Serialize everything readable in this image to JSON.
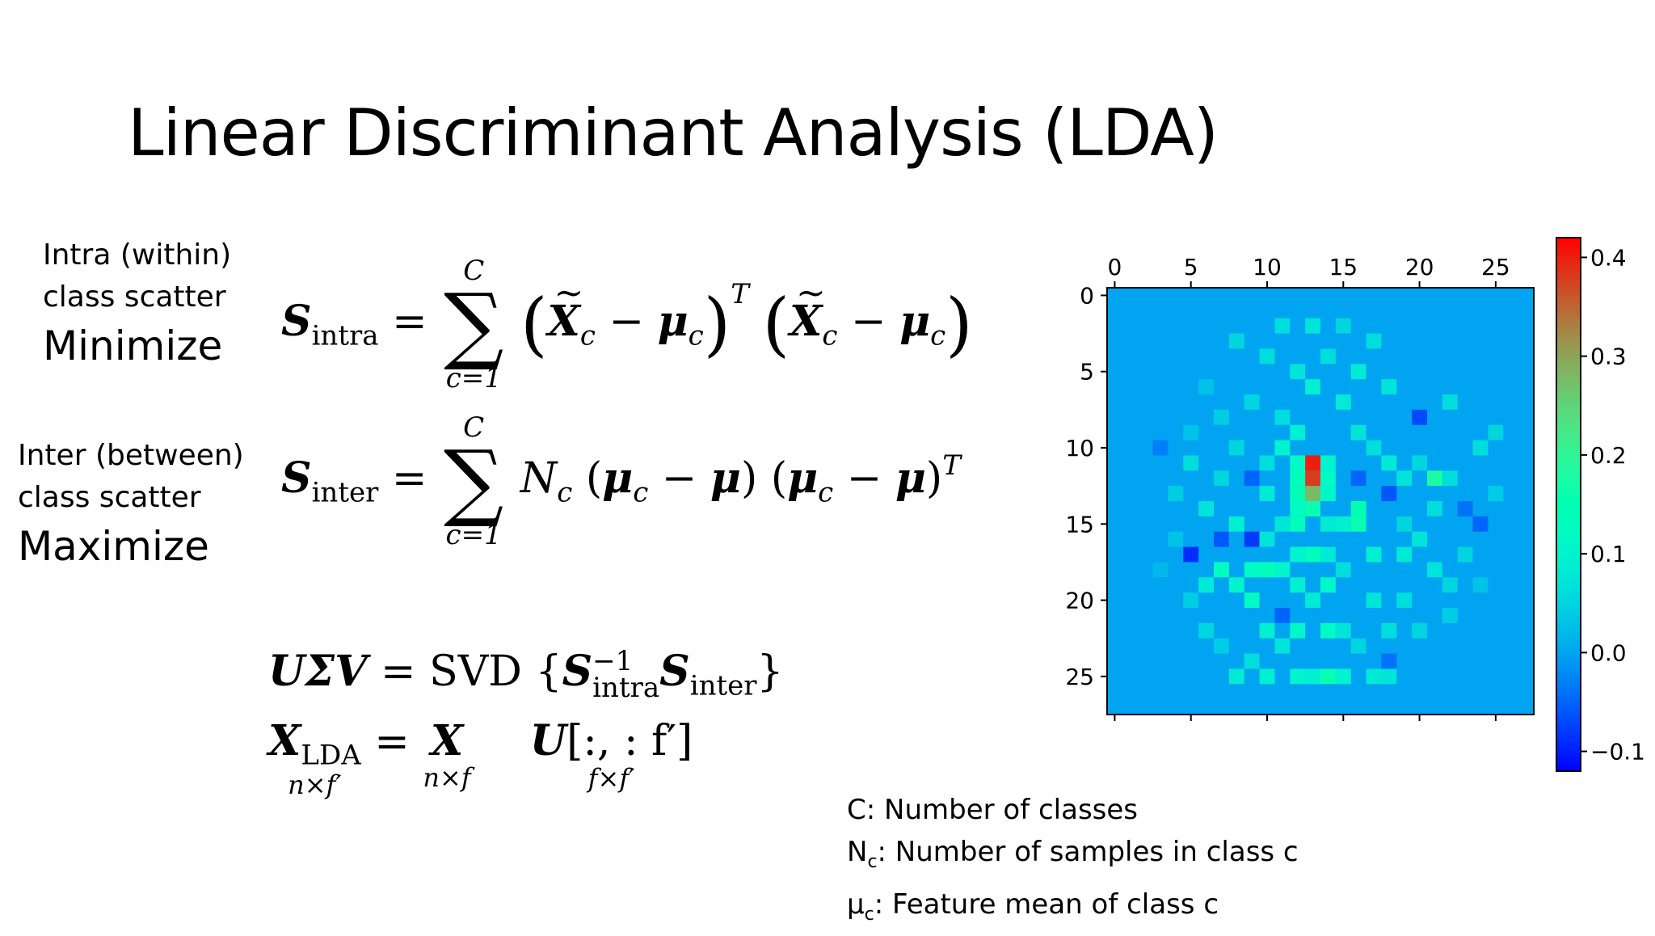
{
  "title": "Linear Discriminant Analysis (LDA)",
  "intra": {
    "line1": "Intra (within)",
    "line2": "class scatter",
    "action": "Minimize"
  },
  "inter": {
    "line1": "Inter (between)",
    "line2": "class scatter",
    "action": "Maximize"
  },
  "equations": {
    "S": "S",
    "intra_sub": "intra",
    "inter_sub": "inter",
    "sum_top": "C",
    "sum_bottom": "c=1",
    "X": "X",
    "mu": "μ",
    "c": "c",
    "T": "T",
    "N": "N",
    "svd_lhs": "UΣV",
    "svd_fn": "SVD",
    "inv": "−1",
    "lda_sub": "LDA",
    "dim_lda": "n×f′",
    "dim_x": "n×f",
    "U_slice": "[:, : f′]",
    "dim_u": "f×f′"
  },
  "notes": [
    {
      "sym": "C",
      "sub": "",
      "text": ": Number of classes"
    },
    {
      "sym": "N",
      "sub": "c",
      "text": ": Number of samples in class c"
    },
    {
      "sym": "μ",
      "sub": "c",
      "text": ": Feature mean of class c"
    }
  ],
  "chart_data": {
    "type": "heatmap",
    "x_ticks": [
      0,
      5,
      10,
      15,
      20,
      25
    ],
    "y_ticks": [
      0,
      5,
      10,
      15,
      20,
      25
    ],
    "xlim": [
      -0.5,
      27.5
    ],
    "ylim": [
      27.5,
      -0.5
    ],
    "x_axis_position": "top",
    "grid": false,
    "colormap": "rainbow",
    "colorbar": {
      "ticks": [
        0.4,
        0.3,
        0.2,
        0.1,
        0.0,
        -0.1
      ],
      "tick_labels": [
        "0.4",
        "0.3",
        "0.2",
        "0.1",
        "0.0",
        "−0.1"
      ],
      "range": [
        -0.12,
        0.42
      ],
      "position": "right"
    },
    "background_value": 0.0,
    "grid_size": [
      28,
      28
    ],
    "cells": [
      [
        13,
        11,
        0.4
      ],
      [
        13,
        12,
        0.38
      ],
      [
        13,
        13,
        0.28
      ],
      [
        12,
        11,
        0.12
      ],
      [
        14,
        11,
        0.1
      ],
      [
        12,
        12,
        0.14
      ],
      [
        14,
        12,
        0.12
      ],
      [
        12,
        13,
        0.15
      ],
      [
        14,
        13,
        0.11
      ],
      [
        12,
        14,
        0.12
      ],
      [
        13,
        14,
        0.16
      ],
      [
        12,
        15,
        0.14
      ],
      [
        16,
        14,
        0.15
      ],
      [
        16,
        15,
        0.16
      ],
      [
        14,
        15,
        0.08
      ],
      [
        15,
        15,
        0.09
      ],
      [
        5,
        17,
        -0.09
      ],
      [
        9,
        16,
        -0.08
      ],
      [
        12,
        9,
        0.09
      ],
      [
        11,
        10,
        0.1
      ],
      [
        9,
        12,
        -0.05
      ],
      [
        20,
        11,
        0.05
      ],
      [
        21,
        12,
        0.18
      ],
      [
        22,
        12,
        0.06
      ],
      [
        18,
        13,
        -0.06
      ],
      [
        23,
        14,
        -0.04
      ],
      [
        24,
        15,
        -0.05
      ],
      [
        20,
        16,
        0.07
      ],
      [
        7,
        18,
        0.13
      ],
      [
        9,
        18,
        0.12
      ],
      [
        10,
        18,
        0.14
      ],
      [
        11,
        18,
        0.1
      ],
      [
        6,
        19,
        0.08
      ],
      [
        8,
        19,
        0.1
      ],
      [
        12,
        19,
        0.09
      ],
      [
        14,
        19,
        0.11
      ],
      [
        9,
        20,
        0.12
      ],
      [
        13,
        20,
        0.08
      ],
      [
        17,
        20,
        0.07
      ],
      [
        19,
        20,
        0.06
      ],
      [
        10,
        22,
        0.09
      ],
      [
        12,
        22,
        0.11
      ],
      [
        14,
        22,
        0.12
      ],
      [
        15,
        22,
        0.07
      ],
      [
        8,
        25,
        0.08
      ],
      [
        10,
        25,
        0.09
      ],
      [
        12,
        25,
        0.1
      ],
      [
        13,
        25,
        0.09
      ],
      [
        14,
        25,
        0.16
      ],
      [
        15,
        25,
        0.1
      ],
      [
        17,
        25,
        0.08
      ],
      [
        18,
        25,
        0.07
      ],
      [
        5,
        11,
        0.06
      ],
      [
        7,
        12,
        0.05
      ],
      [
        6,
        14,
        0.07
      ],
      [
        8,
        15,
        0.09
      ],
      [
        7,
        16,
        -0.06
      ],
      [
        10,
        16,
        0.07
      ],
      [
        17,
        17,
        0.09
      ],
      [
        19,
        17,
        0.08
      ],
      [
        21,
        18,
        0.07
      ],
      [
        22,
        19,
        0.05
      ],
      [
        24,
        10,
        0.06
      ],
      [
        25,
        9,
        0.05
      ],
      [
        20,
        8,
        -0.07
      ],
      [
        22,
        7,
        0.06
      ],
      [
        18,
        6,
        0.07
      ],
      [
        16,
        5,
        0.08
      ],
      [
        14,
        4,
        0.06
      ],
      [
        12,
        5,
        0.07
      ],
      [
        10,
        4,
        0.06
      ],
      [
        8,
        3,
        0.05
      ],
      [
        11,
        2,
        0.06
      ],
      [
        13,
        2,
        0.07
      ],
      [
        15,
        2,
        0.05
      ],
      [
        17,
        3,
        0.06
      ],
      [
        9,
        7,
        0.05
      ],
      [
        11,
        8,
        0.06
      ],
      [
        13,
        6,
        0.09
      ],
      [
        15,
        7,
        0.08
      ],
      [
        16,
        9,
        0.07
      ],
      [
        17,
        10,
        0.06
      ],
      [
        18,
        11,
        0.08
      ],
      [
        19,
        12,
        0.07
      ],
      [
        3,
        10,
        -0.03
      ],
      [
        4,
        13,
        0.04
      ],
      [
        4,
        16,
        0.03
      ],
      [
        5,
        20,
        0.04
      ],
      [
        3,
        18,
        0.02
      ],
      [
        6,
        22,
        0.05
      ],
      [
        7,
        23,
        0.04
      ],
      [
        9,
        24,
        0.06
      ],
      [
        11,
        23,
        0.07
      ],
      [
        16,
        23,
        0.05
      ],
      [
        18,
        22,
        0.06
      ],
      [
        20,
        22,
        0.05
      ],
      [
        22,
        21,
        0.04
      ],
      [
        23,
        17,
        0.05
      ],
      [
        24,
        19,
        0.03
      ],
      [
        25,
        13,
        0.04
      ],
      [
        6,
        6,
        0.03
      ],
      [
        7,
        8,
        0.04
      ],
      [
        5,
        9,
        0.03
      ],
      [
        8,
        10,
        0.05
      ],
      [
        19,
        15,
        0.05
      ],
      [
        21,
        14,
        0.06
      ],
      [
        11,
        21,
        -0.05
      ],
      [
        18,
        24,
        -0.04
      ],
      [
        16,
        12,
        -0.05
      ],
      [
        10,
        13,
        0.08
      ],
      [
        13,
        17,
        0.13
      ],
      [
        12,
        17,
        0.1
      ],
      [
        14,
        17,
        0.08
      ],
      [
        11,
        15,
        0.07
      ],
      [
        15,
        18,
        0.06
      ],
      [
        10,
        11,
        0.06
      ]
    ]
  }
}
